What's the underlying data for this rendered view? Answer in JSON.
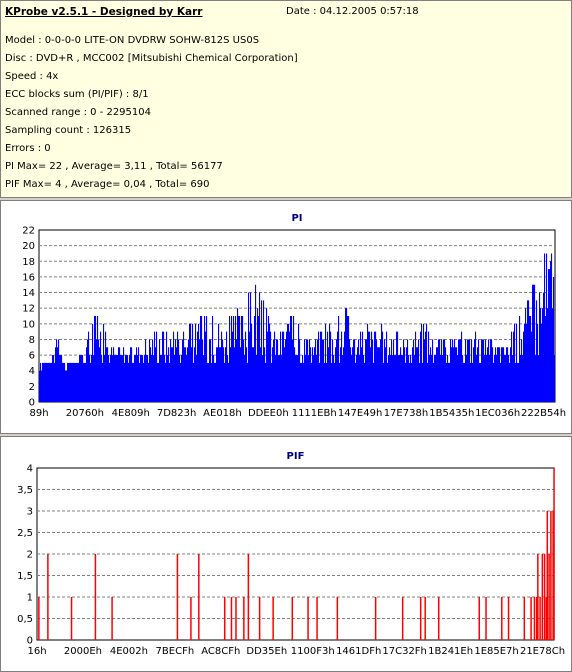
{
  "header": {
    "app_title": "KProbe v2.5.1 - Designed by Karr",
    "date": "Date : 04.12.2005 0:57:18"
  },
  "info": {
    "model": "Model : 0-0-0-0 LITE-ON DVDRW SOHW-812S  US0S",
    "disc": "Disc : DVD+R , MCC002 [Mitsubishi Chemical Corporation]",
    "speed": "Speed : 4x",
    "ecc": "ECC blocks sum (PI/PIF) : 8/1",
    "range": "Scanned range : 0 - 2295104",
    "sampling": "Sampling count : 126315",
    "errors": "Errors : 0",
    "pi_stats": "PI Max= 22 , Average= 3,11 , Total= 56177",
    "pif_stats": "PIF Max= 4 , Average= 0,04 , Total= 690"
  },
  "colors": {
    "pi_bars": "#0000ff",
    "pif_bars": "#ff0000",
    "title": "#00007f",
    "grid": "#808080"
  },
  "chart_data": [
    {
      "type": "bar",
      "title": "PI",
      "ylim": [
        0,
        22
      ],
      "yticks": [
        "0",
        "2",
        "4",
        "6",
        "8",
        "10",
        "12",
        "14",
        "16",
        "18",
        "20",
        "22"
      ],
      "xticks": [
        "89h",
        "20760h",
        "4E809h",
        "7D823h",
        "AE018h",
        "DDEE0h",
        "1111EBh",
        "147E49h",
        "17E738h",
        "1B5435h",
        "1EC036h",
        "222B54h"
      ],
      "x_range": [
        0,
        2295104
      ],
      "grid": "horizontal dashed",
      "baseline_typical": 5,
      "points": [
        [
          0,
          4
        ],
        [
          60000,
          6
        ],
        [
          86000,
          9
        ],
        [
          110000,
          4
        ],
        [
          180000,
          6
        ],
        [
          262000,
          12
        ],
        [
          320000,
          7
        ],
        [
          420000,
          7
        ],
        [
          530000,
          10
        ],
        [
          620000,
          9
        ],
        [
          720000,
          11
        ],
        [
          860000,
          11
        ],
        [
          960000,
          15
        ],
        [
          1060000,
          9
        ],
        [
          1100000,
          12
        ],
        [
          1200000,
          8
        ],
        [
          1360000,
          12
        ],
        [
          1400000,
          9
        ],
        [
          1500000,
          10
        ],
        [
          1650000,
          8
        ],
        [
          1700000,
          10
        ],
        [
          1800000,
          8
        ],
        [
          1900000,
          9
        ],
        [
          2000000,
          8
        ],
        [
          2070000,
          7
        ],
        [
          2100000,
          9
        ],
        [
          2150000,
          12
        ],
        [
          2200000,
          15
        ],
        [
          2240000,
          18
        ],
        [
          2270000,
          22
        ],
        [
          2295104,
          20
        ]
      ]
    },
    {
      "type": "bar",
      "title": "PIF",
      "ylim": [
        0,
        4
      ],
      "yticks": [
        "0",
        "0,5",
        "1",
        "1,5",
        "2",
        "2,5",
        "3",
        "3,5",
        "4"
      ],
      "xticks": [
        "16h",
        "2000Eh",
        "4E002h",
        "7BECFh",
        "AC8CFh",
        "DD35Eh",
        "1100F3h",
        "1461DFh",
        "17C32Fh",
        "1B241Eh",
        "1E85E7h",
        "21E78Ch"
      ],
      "x_range": [
        0,
        2295104
      ],
      "grid": "horizontal dashed",
      "spikes": [
        [
          5000,
          1
        ],
        [
          45000,
          2
        ],
        [
          150000,
          1
        ],
        [
          256000,
          2
        ],
        [
          330000,
          1
        ],
        [
          620000,
          2
        ],
        [
          680000,
          1
        ],
        [
          715000,
          2
        ],
        [
          830000,
          1
        ],
        [
          860000,
          1
        ],
        [
          880000,
          1
        ],
        [
          915000,
          1
        ],
        [
          935000,
          2
        ],
        [
          985000,
          1
        ],
        [
          1045000,
          1
        ],
        [
          1130000,
          1
        ],
        [
          1200000,
          1
        ],
        [
          1240000,
          1
        ],
        [
          1330000,
          1
        ],
        [
          1500000,
          1
        ],
        [
          1620000,
          1
        ],
        [
          1700000,
          1
        ],
        [
          1720000,
          1
        ],
        [
          1780000,
          1
        ],
        [
          1960000,
          1
        ],
        [
          1990000,
          1
        ],
        [
          2060000,
          1
        ],
        [
          2090000,
          1
        ],
        [
          2160000,
          1
        ],
        [
          2190000,
          1
        ],
        [
          2205000,
          1
        ],
        [
          2215000,
          1
        ],
        [
          2220000,
          2
        ],
        [
          2230000,
          1
        ],
        [
          2240000,
          2
        ],
        [
          2250000,
          2
        ],
        [
          2258000,
          1
        ],
        [
          2262000,
          3
        ],
        [
          2270000,
          2
        ],
        [
          2278000,
          3
        ],
        [
          2288000,
          3
        ],
        [
          2292000,
          4
        ]
      ]
    }
  ]
}
